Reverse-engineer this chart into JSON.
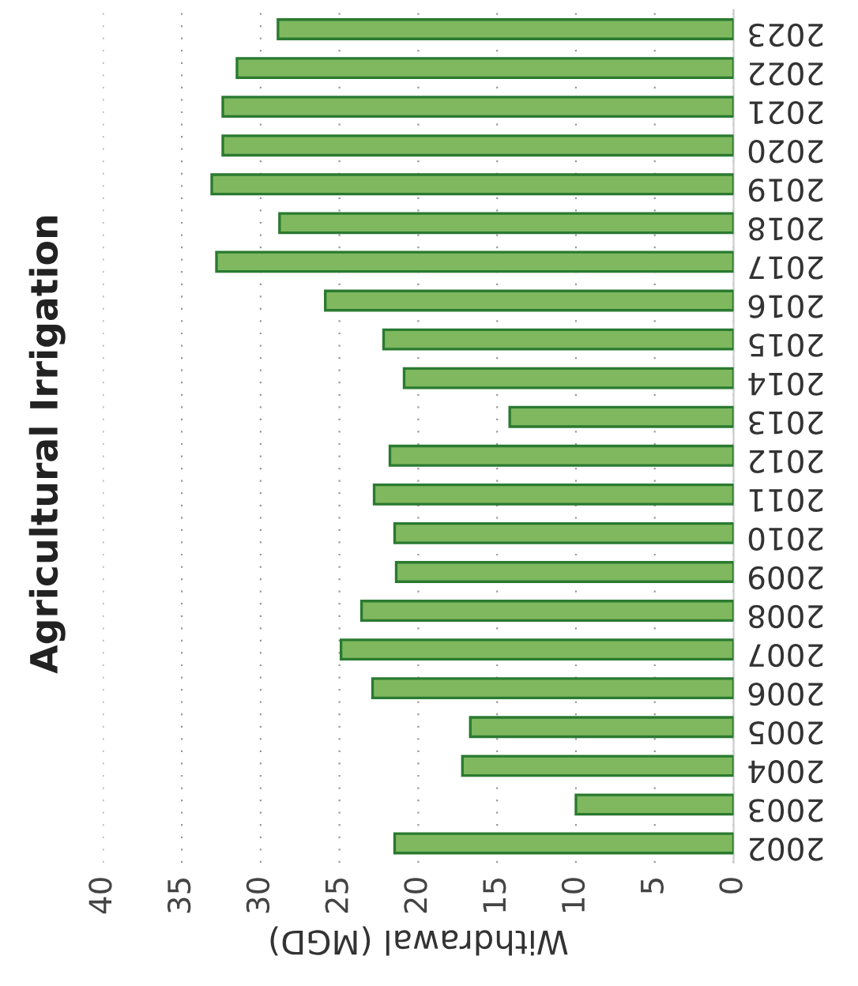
{
  "chart_data": {
    "type": "bar",
    "orientation": "horizontal",
    "title": "Agricultural Irrigation",
    "xlabel": "Withdrawal (MGD)",
    "categories": [
      "2023",
      "2022",
      "2021",
      "2020",
      "2019",
      "2018",
      "2017",
      "2016",
      "2015",
      "2014",
      "2013",
      "2012",
      "2011",
      "2010",
      "2009",
      "2008",
      "2007",
      "2006",
      "2005",
      "2004",
      "2003",
      "2002"
    ],
    "values": [
      28.9,
      31.5,
      32.4,
      32.4,
      33.1,
      28.8,
      32.8,
      25.9,
      22.2,
      20.9,
      14.2,
      21.8,
      22.8,
      21.5,
      21.4,
      23.6,
      24.9,
      22.9,
      16.7,
      17.2,
      10.0,
      21.5
    ],
    "color": "#7fb85e",
    "xlim": [
      40,
      0
    ],
    "xticks": [
      40,
      35,
      30,
      25,
      20,
      15,
      10,
      5,
      0
    ],
    "grid": "x"
  }
}
